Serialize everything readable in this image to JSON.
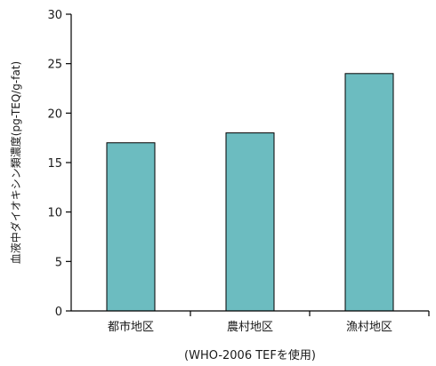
{
  "chart_data": {
    "type": "bar",
    "categories": [
      "都市地区",
      "農村地区",
      "漁村地区"
    ],
    "values": [
      17,
      18,
      24
    ],
    "xlabel": "(WHO-2006 TEFを使用)",
    "ylabel": "血液中ダイオキシン類濃度(pg-TEQ/g-fat)",
    "ylim": [
      0,
      30
    ],
    "yticks": [
      0,
      5,
      10,
      15,
      20,
      25,
      30
    ],
    "grid": false,
    "bar_color": "#6cbcc0"
  }
}
